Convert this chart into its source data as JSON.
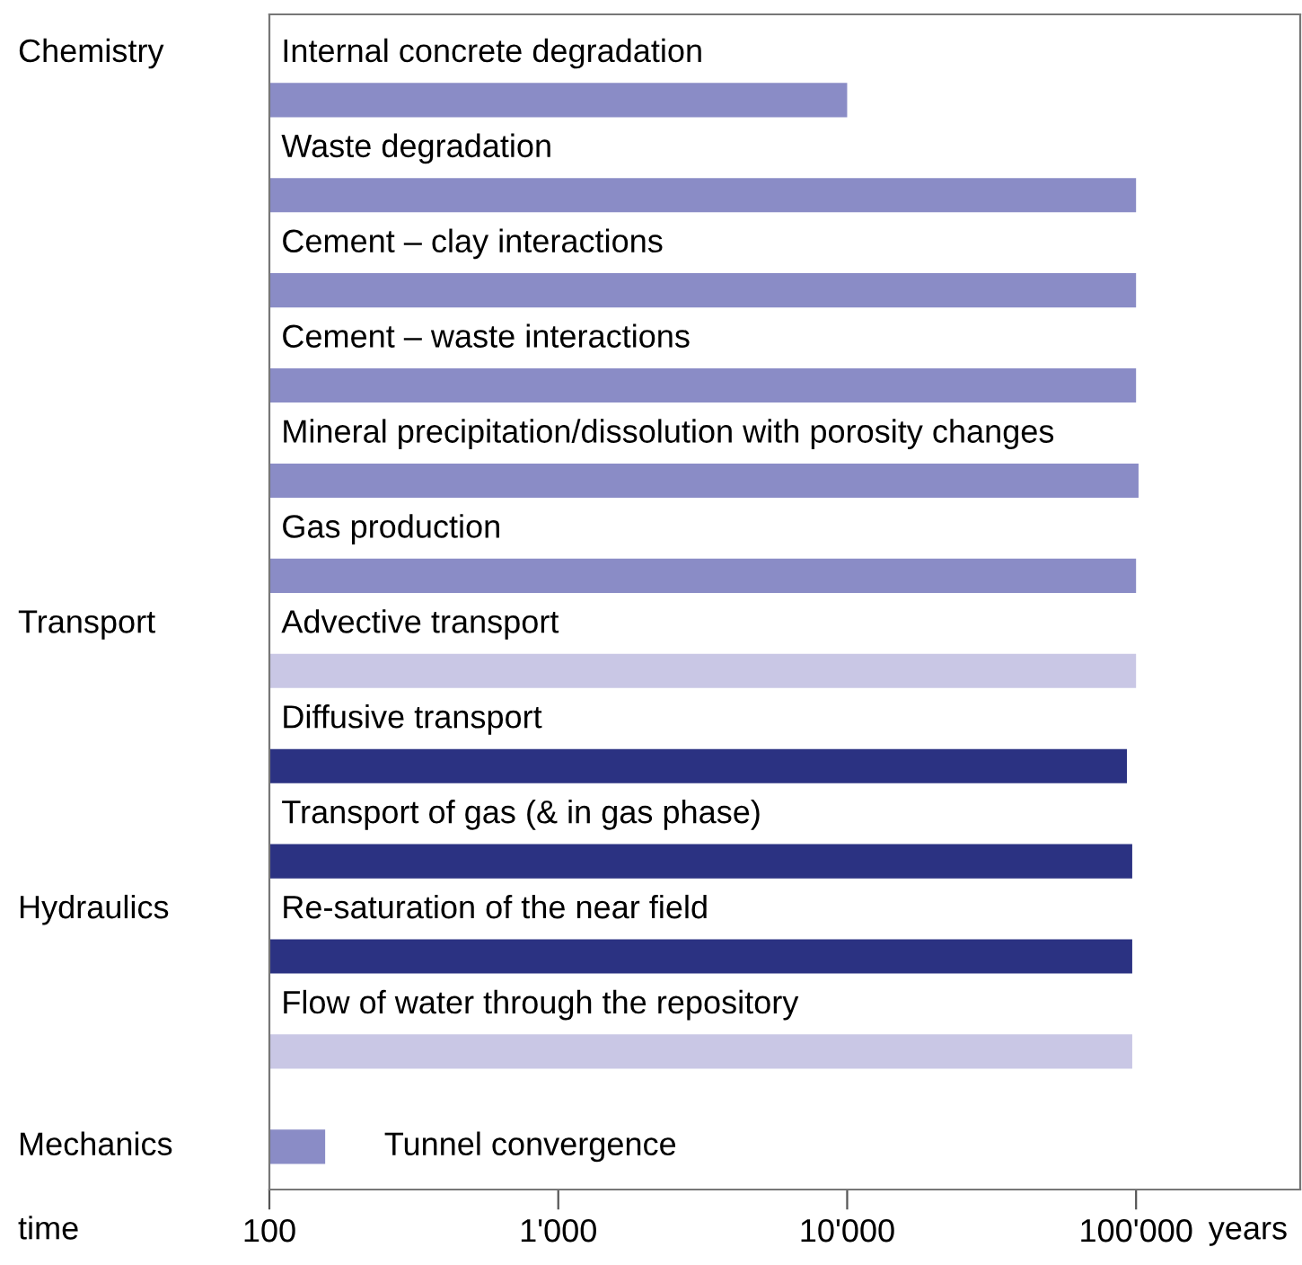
{
  "chart_data": {
    "type": "bar",
    "orientation": "horizontal",
    "log": "x",
    "categories": [
      "Internal concrete degradation",
      "Waste degradation",
      "Cement – clay interactions",
      "Cement – waste interactions",
      "Mineral precipitation/dissolution with porosity changes",
      "Gas production",
      "Advective transport",
      "Diffusive transport",
      "Transport of gas (& in gas phase)",
      "Re-saturation of the near field",
      "Flow of water through the repository",
      "Tunnel convergence"
    ],
    "base": [
      100,
      100,
      100,
      100,
      100,
      100,
      100,
      100,
      100,
      100,
      100,
      100
    ],
    "values": [
      9900,
      99900,
      99900,
      99900,
      101900,
      99900,
      99900,
      92900,
      96900,
      96900,
      96900,
      56
    ],
    "colors": [
      "#8a8cc6",
      "#8a8cc6",
      "#8a8cc6",
      "#8a8cc6",
      "#8a8cc6",
      "#8a8cc6",
      "#c9c7e5",
      "#2b3282",
      "#2b3282",
      "#2b3282",
      "#c9c7e5",
      "#8a8cc6"
    ],
    "xlim": [
      100,
      370000
    ],
    "xticks": [
      100,
      {
        "value": 1000,
        "label": "1'000"
      },
      {
        "value": 10000,
        "label": "10'000"
      },
      {
        "value": 100000,
        "label": "100'000"
      }
    ],
    "annotations": [
      "Chemistry",
      "Transport",
      "Hydraulics",
      "Mechanics",
      "years",
      "time"
    ],
    "grid": false,
    "legend": false
  }
}
